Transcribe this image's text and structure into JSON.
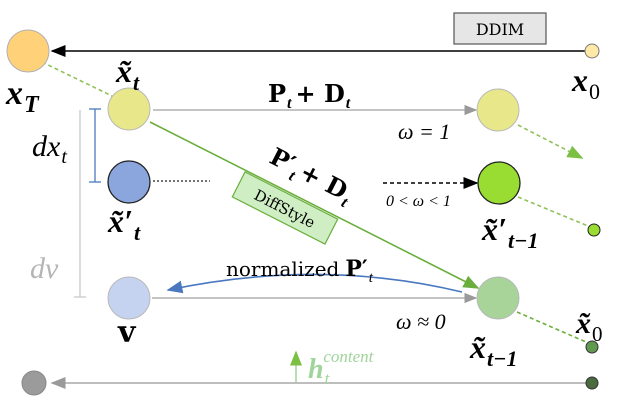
{
  "labels": {
    "ddim": "DDIM",
    "x_T": "x",
    "x_T_sub": "T",
    "x_0_top": "x",
    "x_0_top_sub": "0",
    "x_t": "x̃",
    "x_t_sub": "t",
    "x_t_prime": "x̃′",
    "x_t_prime_sub": "t",
    "v": "v",
    "dx_t": "dx",
    "dx_t_sub": "t",
    "dv": "dv",
    "pd_top": "P",
    "pd_top_sub": "t",
    "pd_top_rest": "+ D",
    "pd_top_rest_sub": "t",
    "omega_1": "ω = 1",
    "pd_diag": "P′",
    "pd_diag_sub": "t",
    "pd_diag_rest": "+ D",
    "pd_diag_rest_sub": "t",
    "diffstyle": "DiffStyle",
    "omega_between": "0 < ω < 1",
    "x_tm1_prime": "x̃′",
    "x_tm1_prime_sub": "t−1",
    "normalized": "normalized",
    "normalized_P": "P′",
    "normalized_P_sub": "t",
    "omega_approx0": "ω ≈ 0",
    "x_tm1": "x̃",
    "x_tm1_sub": "t−1",
    "x_0_bottom": "x̃",
    "x_0_bottom_sub": "0",
    "h_content": "h",
    "h_content_sub": "t",
    "h_content_sup": "content"
  },
  "colors": {
    "xT_node": "#ffd27a",
    "xt_node": "#e8e88a",
    "xt_prime_node": "#8aa6dd",
    "v_node": "#c6d3f0",
    "x_top_right": "#e8e88a",
    "x_mid_right": "#99dd33",
    "x_bottom_right": "#a8d49a",
    "gray_node": "#9b9b9b",
    "green_line": "#6aae3c",
    "blue_arrow": "#4a78c0",
    "gray_line": "#a0a0a0",
    "diffstyle_fill": "#cfeec4",
    "diffstyle_border": "#6aae3c"
  }
}
